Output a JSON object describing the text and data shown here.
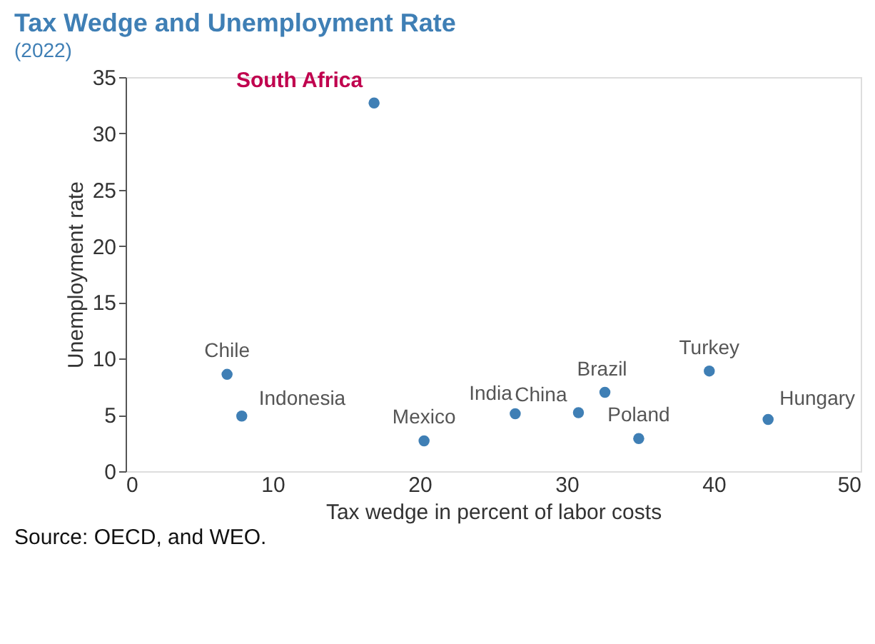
{
  "chart_data": {
    "type": "scatter",
    "title": "Tax Wedge and Unemployment Rate",
    "subtitle": "(2022)",
    "xlabel": "Tax wedge in percent of labor costs",
    "ylabel": "Unemployment rate",
    "x": [
      16.9,
      6.9,
      7.9,
      20.3,
      26.5,
      30.8,
      32.6,
      34.9,
      39.7,
      43.7
    ],
    "series": [
      {
        "color": "#3f7fb5",
        "values": [
          32.7,
          8.6,
          4.9,
          2.7,
          5.1,
          5.2,
          7.0,
          2.9,
          8.9,
          4.6
        ]
      }
    ],
    "xlim": [
      0,
      50
    ],
    "xticks": [
      0,
      10,
      20,
      30,
      40,
      50
    ],
    "ylim": [
      0,
      35
    ],
    "yticks": [
      0,
      5,
      10,
      15,
      20,
      25,
      30,
      35
    ],
    "grid": false,
    "marker": "circle",
    "annotations": [
      {
        "text": "South Africa",
        "x": 16.9,
        "y": 32.7
      },
      {
        "text": "Chile",
        "x": 6.9,
        "y": 8.6
      },
      {
        "text": "Indonesia",
        "x": 7.9,
        "y": 4.9
      },
      {
        "text": "Mexico",
        "x": 20.3,
        "y": 2.7
      },
      {
        "text": "India",
        "x": 26.5,
        "y": 5.1
      },
      {
        "text": "China",
        "x": 30.8,
        "y": 5.2
      },
      {
        "text": "Brazil",
        "x": 32.6,
        "y": 7.0
      },
      {
        "text": "Poland",
        "x": 34.9,
        "y": 2.9
      },
      {
        "text": "Turkey",
        "x": 39.7,
        "y": 8.9
      },
      {
        "text": "Hungary",
        "x": 43.7,
        "y": 4.6
      },
      "Source: OECD, and WEO."
    ]
  }
}
